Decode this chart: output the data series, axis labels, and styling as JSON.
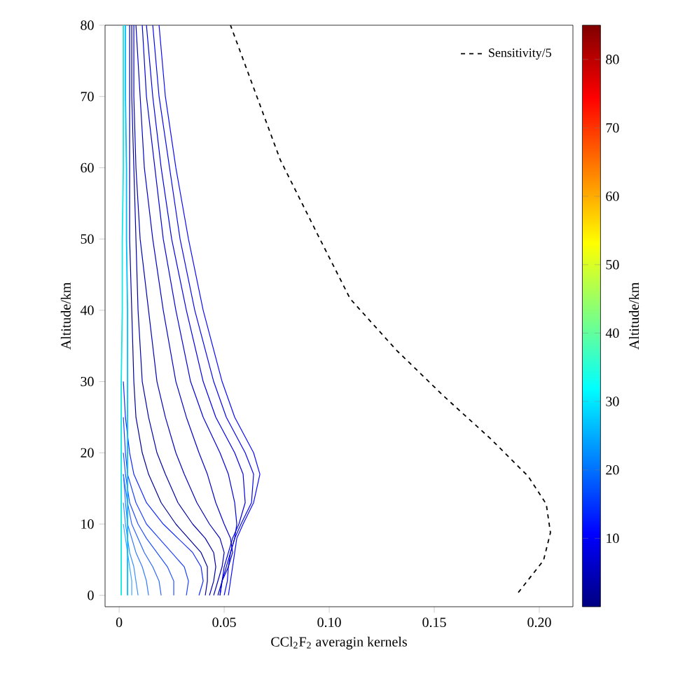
{
  "chart_data": {
    "type": "line",
    "xlabel": "CCl$_{2}$F$_{2}$ averagin kernels",
    "ylabel": "Altitude/km",
    "clabel": "Altitude/km",
    "clim": [
      0,
      85
    ],
    "cticks": [
      10,
      20,
      30,
      40,
      50,
      60,
      70,
      80
    ],
    "xlim": [
      -0.0067,
      0.216
    ],
    "ylim": [
      -1.6,
      80
    ],
    "xticks": [
      0,
      0.05,
      {
        "value": 0.1,
        "label": "0.10"
      },
      0.15,
      {
        "value": 0.2,
        "label": "0.20"
      }
    ],
    "yticks": [
      0,
      10,
      20,
      30,
      40,
      50,
      60,
      70,
      80
    ],
    "grid": false,
    "marker": "none",
    "legend": "top right",
    "series": [
      {
        "color": "#0a0aff",
        "line_style": "solid",
        "x": [
          0.052,
          0.053,
          0.054,
          0.055,
          0.056,
          0.059,
          0.064,
          0.067,
          0.064,
          0.055,
          0.049,
          0.04,
          0.033,
          0.027,
          0.022,
          0.019
        ],
        "values": [
          0,
          2,
          4,
          6,
          8,
          10,
          13,
          17,
          20,
          25,
          30,
          40,
          50,
          60,
          70,
          80
        ]
      },
      {
        "color": "#0606f0",
        "line_style": "solid",
        "x": [
          0.05,
          0.0515,
          0.052,
          0.053,
          0.055,
          0.058,
          0.063,
          0.064,
          0.06,
          0.051,
          0.045,
          0.036,
          0.029,
          0.024,
          0.019,
          0.016
        ],
        "values": [
          0,
          2,
          4,
          6,
          8,
          10,
          13,
          17,
          20,
          25,
          30,
          40,
          50,
          60,
          70,
          80
        ]
      },
      {
        "color": "#0000e6",
        "line_style": "solid",
        "x": [
          0.048,
          0.049,
          0.05,
          0.052,
          0.054,
          0.057,
          0.06,
          0.059,
          0.055,
          0.046,
          0.04,
          0.032,
          0.025,
          0.02,
          0.016,
          0.013
        ],
        "values": [
          0,
          2,
          4,
          6,
          8,
          10,
          13,
          17,
          20,
          25,
          30,
          40,
          50,
          60,
          70,
          80
        ]
      },
      {
        "color": "#0000d8",
        "line_style": "solid",
        "x": [
          0.048,
          0.049,
          0.051,
          0.053,
          0.055,
          0.056,
          0.055,
          0.052,
          0.048,
          0.04,
          0.034,
          0.027,
          0.021,
          0.017,
          0.013,
          0.011
        ],
        "values": [
          0,
          2,
          4,
          6,
          8,
          10,
          13,
          17,
          20,
          25,
          30,
          40,
          50,
          60,
          70,
          80
        ]
      },
      {
        "color": "#0000c8",
        "line_style": "solid",
        "x": [
          0.047,
          0.049,
          0.052,
          0.054,
          0.053,
          0.05,
          0.046,
          0.042,
          0.038,
          0.032,
          0.027,
          0.021,
          0.016,
          0.012,
          0.01,
          0.008
        ],
        "values": [
          0,
          2,
          4,
          6,
          8,
          10,
          13,
          17,
          20,
          25,
          30,
          40,
          50,
          60,
          70,
          80
        ]
      },
      {
        "color": "#0000b8",
        "line_style": "solid",
        "x": [
          0.045,
          0.047,
          0.049,
          0.05,
          0.048,
          0.043,
          0.037,
          0.031,
          0.027,
          0.022,
          0.018,
          0.014,
          0.01,
          0.008,
          0.007,
          0.007
        ],
        "values": [
          0,
          2,
          4,
          6,
          8,
          10,
          13,
          17,
          20,
          25,
          30,
          40,
          50,
          60,
          70,
          80
        ]
      },
      {
        "color": "#0000a8",
        "line_style": "solid",
        "x": [
          0.043,
          0.045,
          0.046,
          0.045,
          0.041,
          0.035,
          0.028,
          0.022,
          0.018,
          0.014,
          0.011,
          0.009,
          0.008,
          0.007,
          0.006,
          0.006
        ],
        "values": [
          0,
          2,
          4,
          6,
          8,
          10,
          13,
          17,
          20,
          25,
          30,
          40,
          50,
          60,
          70,
          80
        ]
      },
      {
        "color": "#000098",
        "line_style": "solid",
        "x": [
          0.041,
          0.042,
          0.042,
          0.039,
          0.033,
          0.027,
          0.02,
          0.014,
          0.011,
          0.008,
          0.007,
          0.006,
          0.005,
          0.005,
          0.005,
          0.005
        ],
        "values": [
          0,
          2,
          4,
          6,
          8,
          10,
          13,
          17,
          20,
          25,
          30,
          40,
          50,
          60,
          70,
          80
        ]
      },
      {
        "color": "#1028ff",
        "line_style": "solid",
        "x": [
          0.038,
          0.04,
          0.039,
          0.035,
          0.028,
          0.021,
          0.013,
          0.007,
          0.005,
          0.003,
          0.002
        ],
        "values": [
          0,
          2,
          4,
          6,
          8,
          10,
          13,
          17,
          20,
          25,
          30
        ]
      },
      {
        "color": "#1c40ff",
        "line_style": "solid",
        "x": [
          0.032,
          0.033,
          0.031,
          0.025,
          0.019,
          0.013,
          0.008,
          0.004,
          0.003,
          0.002
        ],
        "values": [
          0,
          2,
          4,
          6,
          8,
          10,
          13,
          17,
          20,
          25
        ]
      },
      {
        "color": "#2050ff",
        "line_style": "solid",
        "x": [
          0.026,
          0.026,
          0.023,
          0.018,
          0.013,
          0.009,
          0.005,
          0.003,
          0.002
        ],
        "values": [
          0,
          2,
          4,
          6,
          8,
          10,
          13,
          17,
          20
        ]
      },
      {
        "color": "#2864ff",
        "line_style": "solid",
        "x": [
          0.02,
          0.019,
          0.016,
          0.012,
          0.009,
          0.006,
          0.004,
          0.002
        ],
        "values": [
          0,
          2,
          4,
          6,
          8,
          10,
          13,
          17
        ]
      },
      {
        "color": "#3078ff",
        "line_style": "solid",
        "x": [
          0.014,
          0.013,
          0.011,
          0.008,
          0.006,
          0.004,
          0.003,
          0.002
        ],
        "values": [
          0,
          2,
          4,
          6,
          8,
          10,
          13,
          17
        ]
      },
      {
        "color": "#3890ff",
        "line_style": "solid",
        "x": [
          0.009,
          0.008,
          0.007,
          0.005,
          0.004,
          0.003,
          0.002
        ],
        "values": [
          0,
          2,
          4,
          6,
          8,
          10,
          13
        ]
      },
      {
        "color": "#40a8ff",
        "line_style": "solid",
        "x": [
          0.006,
          0.006,
          0.005,
          0.004,
          0.003,
          0.002
        ],
        "values": [
          0,
          2,
          4,
          6,
          8,
          10
        ]
      },
      {
        "color": "#00c0ff",
        "line_style": "solid",
        "x": [
          0.004,
          0.004,
          0.004,
          0.004,
          0.004,
          0.004,
          0.004,
          0.004,
          0.004,
          0.004,
          0.004,
          0.004,
          0.0035,
          0.0035,
          0.003,
          0.003
        ],
        "values": [
          0,
          2,
          4,
          6,
          8,
          10,
          13,
          17,
          20,
          25,
          30,
          40,
          50,
          60,
          70,
          80
        ]
      },
      {
        "color": "#10e8e8",
        "line_style": "solid",
        "x": [
          0.001,
          0.001,
          0.001,
          0.001,
          0.001,
          0.001,
          0.001,
          0.001,
          0.001,
          0.001,
          0.001,
          0.0015,
          0.0015,
          0.002,
          0.002,
          0.002
        ],
        "values": [
          0,
          2,
          4,
          6,
          8,
          10,
          13,
          17,
          20,
          25,
          30,
          40,
          50,
          60,
          70,
          80
        ]
      },
      {
        "name": "Sensitivity/5",
        "color": "#000000",
        "line_style": "dashed",
        "x": [
          0.19,
          0.202,
          0.2053,
          0.2033,
          0.1947,
          0.1767,
          0.1547,
          0.132,
          0.11,
          0.0947,
          0.0767,
          0.053
        ],
        "values": [
          0.4,
          4.9,
          8.8,
          12.8,
          16.7,
          22.0,
          27.9,
          34.4,
          41.6,
          50.5,
          61.1,
          80
        ]
      }
    ]
  }
}
